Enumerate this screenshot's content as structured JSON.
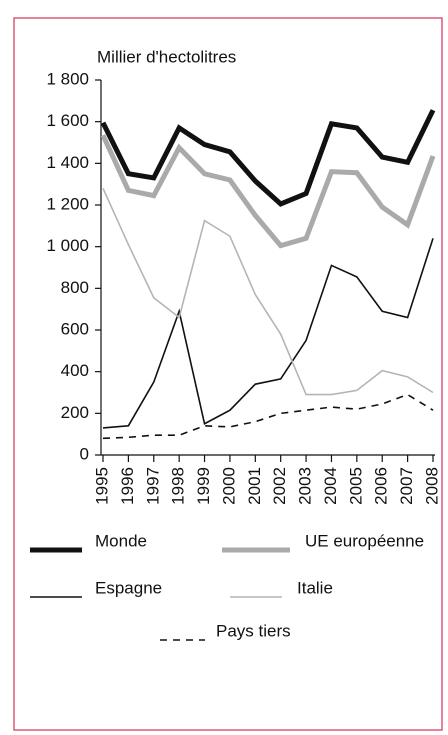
{
  "chart_data": {
    "type": "line",
    "y_axis_label": "Millier d'hectolitres",
    "categories": [
      "1995",
      "1996",
      "1997",
      "1998",
      "1999",
      "2000",
      "2001",
      "2002",
      "2003",
      "2004",
      "2005",
      "2006",
      "2007",
      "2008"
    ],
    "series": [
      {
        "name": "Monde",
        "color": "#111111",
        "width": 5,
        "dash": "none",
        "values": [
          1595,
          1350,
          1330,
          1570,
          1490,
          1455,
          1315,
          1205,
          1255,
          1590,
          1570,
          1430,
          1405,
          1655
        ]
      },
      {
        "name": "UE européenne",
        "color": "#aaaaaa",
        "width": 5,
        "dash": "none",
        "values": [
          1535,
          1270,
          1245,
          1475,
          1350,
          1320,
          1150,
          1005,
          1040,
          1360,
          1355,
          1190,
          1105,
          1435
        ]
      },
      {
        "name": "Espagne",
        "color": "#111111",
        "width": 1.6,
        "dash": "none",
        "values": [
          130,
          140,
          350,
          690,
          150,
          215,
          340,
          365,
          550,
          910,
          855,
          690,
          660,
          1040
        ]
      },
      {
        "name": "Italie",
        "color": "#b5b5b5",
        "width": 1.6,
        "dash": "none",
        "values": [
          1280,
          1010,
          755,
          660,
          1125,
          1050,
          770,
          580,
          290,
          290,
          310,
          405,
          375,
          300
        ]
      },
      {
        "name": "Pays tiers",
        "color": "#111111",
        "width": 1.6,
        "dash": "7 6",
        "values": [
          80,
          85,
          95,
          95,
          140,
          135,
          160,
          200,
          215,
          230,
          220,
          245,
          290,
          215
        ]
      }
    ],
    "ylim": [
      0,
      1800
    ],
    "yticks": [
      0,
      {
        "value": 200,
        "label": "200"
      },
      {
        "value": 400,
        "label": "400"
      },
      {
        "value": 600,
        "label": "600"
      },
      {
        "value": 800,
        "label": "800"
      },
      {
        "value": 1000,
        "label": "1 000"
      },
      {
        "value": 1200,
        "label": "1 200"
      },
      {
        "value": 1400,
        "label": "1 400"
      },
      {
        "value": 1600,
        "label": "1 600"
      },
      {
        "value": 1800,
        "label": "1 800"
      }
    ],
    "grid": false
  }
}
